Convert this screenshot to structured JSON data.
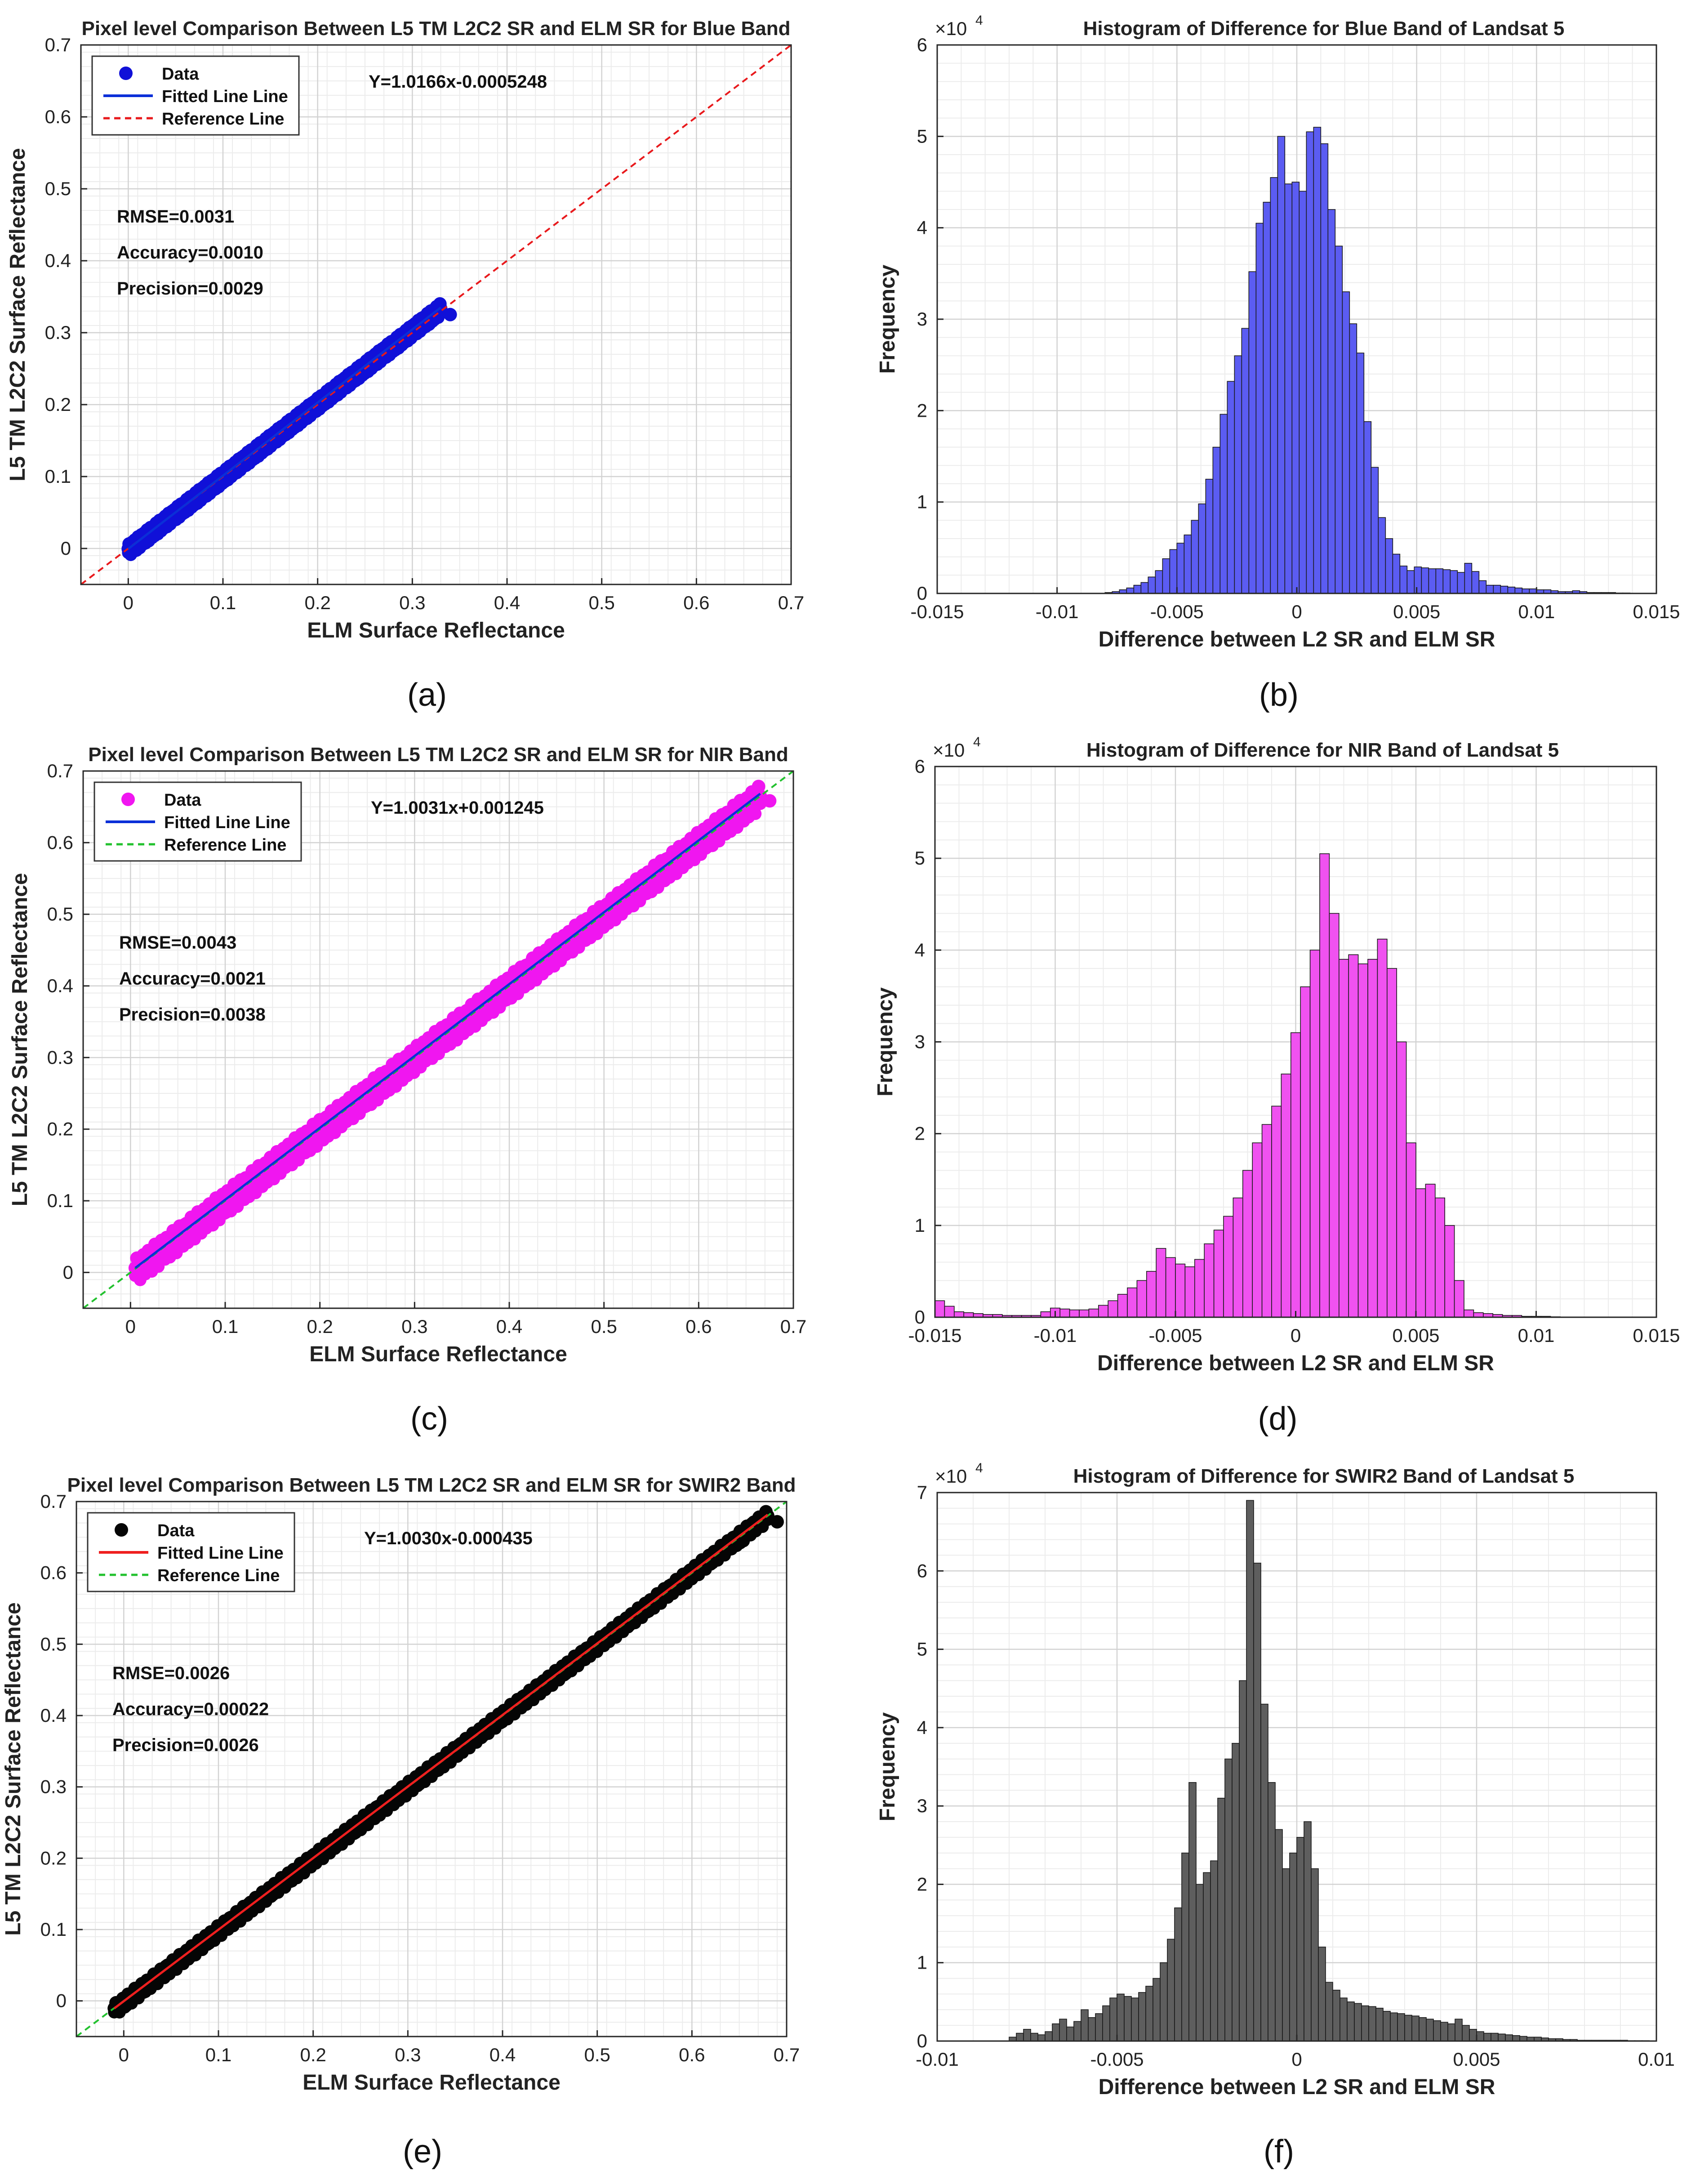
{
  "chart_data": [
    {
      "type": "scatter",
      "panel_label": "(a)",
      "title": "Pixel level Comparison Between L5 TM L2C2 SR and ELM SR for Blue Band",
      "xlabel": "ELM Surface Reflectance",
      "ylabel": "L5 TM L2C2 Surface Reflectance",
      "xlim": [
        -0.05,
        0.7
      ],
      "ylim": [
        -0.05,
        0.7
      ],
      "xticks": [
        "0",
        "0.1",
        "0.2",
        "0.3",
        "0.4",
        "0.5",
        "0.6",
        "0.7"
      ],
      "yticks": [
        "0",
        "0.1",
        "0.2",
        "0.3",
        "0.4",
        "0.5",
        "0.6",
        "0.7"
      ],
      "grid": true,
      "legend_position": "top-left",
      "legend": [
        "Data",
        "Fitted Line Line",
        "Reference Line"
      ],
      "equation": "Y=1.0166x-0.0005248",
      "stats": [
        "RMSE=0.0031",
        "Accuracy=0.0010",
        "Precision=0.0029"
      ],
      "slope": 1.0166,
      "intercept": -0.0005248,
      "data_range": [
        0.0,
        0.33
      ],
      "band_spread": 0.006,
      "colors": {
        "data": "#1010d8",
        "fit": "#0a2fd8",
        "reference": "#e8191c"
      },
      "fit_style": "solid",
      "reference_style": "dashed"
    },
    {
      "type": "bar",
      "panel_label": "(b)",
      "title": "Histogram of Difference for Blue Band of Landsat 5",
      "xlabel": "Difference between L2 SR and ELM SR",
      "ylabel": "Frequency",
      "multiplier": "×10",
      "multiplier_exp": "4",
      "xlim": [
        -0.015,
        0.015
      ],
      "ylim": [
        0,
        6
      ],
      "xticks": [
        "-0.015",
        "-0.01",
        "-0.005",
        "0",
        "0.005",
        "0.01",
        "0.015"
      ],
      "yticks": [
        "0",
        "1",
        "2",
        "3",
        "4",
        "5",
        "6"
      ],
      "grid": true,
      "bin_start": -0.008,
      "bin_width": 0.0003,
      "values": [
        0.01,
        0.02,
        0.04,
        0.06,
        0.09,
        0.12,
        0.18,
        0.25,
        0.38,
        0.48,
        0.55,
        0.64,
        0.8,
        0.98,
        1.25,
        1.6,
        1.96,
        2.32,
        2.6,
        2.9,
        3.52,
        4.05,
        4.28,
        4.55,
        5.0,
        4.48,
        4.5,
        4.4,
        5.05,
        5.1,
        4.92,
        4.2,
        3.8,
        3.3,
        2.95,
        2.63,
        1.88,
        1.38,
        0.83,
        0.6,
        0.43,
        0.3,
        0.25,
        0.29,
        0.28,
        0.27,
        0.27,
        0.26,
        0.25,
        0.23,
        0.33,
        0.24,
        0.14,
        0.09,
        0.09,
        0.08,
        0.07,
        0.06,
        0.05,
        0.05,
        0.04,
        0.04,
        0.03,
        0.02,
        0.02,
        0.03,
        0.02,
        0.01,
        0.01,
        0.01,
        0.01,
        0.005,
        0.005,
        0.003
      ],
      "color": "#5b5cf2"
    },
    {
      "type": "scatter",
      "panel_label": "(c)",
      "title": "Pixel level Comparison Between L5 TM L2C2 SR and ELM SR for NIR Band",
      "xlabel": "ELM Surface Reflectance",
      "ylabel": "L5 TM L2C2 Surface Reflectance",
      "xlim": [
        -0.05,
        0.7
      ],
      "ylim": [
        -0.05,
        0.7
      ],
      "xticks": [
        "0",
        "0.1",
        "0.2",
        "0.3",
        "0.4",
        "0.5",
        "0.6",
        "0.7"
      ],
      "yticks": [
        "0",
        "0.1",
        "0.2",
        "0.3",
        "0.4",
        "0.5",
        "0.6",
        "0.7"
      ],
      "grid": true,
      "legend_position": "top-left",
      "legend": [
        "Data",
        "Fitted Line Line",
        "Reference Line"
      ],
      "equation": "Y=1.0031x+0.001245",
      "stats": [
        "RMSE=0.0043",
        "Accuracy=0.0021",
        "Precision=0.0038"
      ],
      "slope": 1.0031,
      "intercept": 0.001245,
      "data_range": [
        0.005,
        0.665
      ],
      "band_spread": 0.012,
      "colors": {
        "data": "#f016f0",
        "fit": "#0a2fd8",
        "reference": "#22c12e"
      },
      "fit_style": "solid",
      "reference_style": "dashed"
    },
    {
      "type": "bar",
      "panel_label": "(d)",
      "title": "Histogram of Difference for NIR Band of Landsat 5",
      "xlabel": "Difference between L2 SR and ELM SR",
      "ylabel": "Frequency",
      "multiplier": "×10",
      "multiplier_exp": "4",
      "xlim": [
        -0.015,
        0.015
      ],
      "ylim": [
        0,
        6
      ],
      "xticks": [
        "-0.015",
        "-0.01",
        "-0.005",
        "0",
        "0.005",
        "0.01",
        "0.015"
      ],
      "yticks": [
        "0",
        "1",
        "2",
        "3",
        "4",
        "5",
        "6"
      ],
      "grid": true,
      "bin_start": -0.015,
      "bin_width": 0.0004,
      "values": [
        0.18,
        0.12,
        0.06,
        0.05,
        0.04,
        0.03,
        0.03,
        0.02,
        0.02,
        0.02,
        0.02,
        0.06,
        0.1,
        0.09,
        0.08,
        0.08,
        0.09,
        0.13,
        0.18,
        0.25,
        0.32,
        0.4,
        0.5,
        0.75,
        0.65,
        0.58,
        0.55,
        0.63,
        0.8,
        0.95,
        1.1,
        1.3,
        1.6,
        1.9,
        2.1,
        2.3,
        2.65,
        3.1,
        3.6,
        4.0,
        5.05,
        4.4,
        3.9,
        3.95,
        3.85,
        3.9,
        4.12,
        3.8,
        3.0,
        1.9,
        1.4,
        1.45,
        1.3,
        1.0,
        0.4,
        0.08,
        0.05,
        0.04,
        0.03,
        0.02,
        0.02,
        0.01,
        0.01,
        0.01,
        0.005,
        0.003,
        0.002,
        0.002,
        0.001,
        0.001,
        0.001,
        0.001,
        0.001,
        0.001,
        0.001
      ],
      "color": "#f052f0"
    },
    {
      "type": "scatter",
      "panel_label": "(e)",
      "title": "Pixel level Comparison Between L5 TM L2C2 SR and ELM SR for SWIR2 Band",
      "xlabel": "ELM Surface Reflectance",
      "ylabel": "L5 TM L2C2 Surface Reflectance",
      "xlim": [
        -0.05,
        0.7
      ],
      "ylim": [
        -0.05,
        0.7
      ],
      "xticks": [
        "0",
        "0.1",
        "0.2",
        "0.3",
        "0.4",
        "0.5",
        "0.6",
        "0.7"
      ],
      "yticks": [
        "0",
        "0.1",
        "0.2",
        "0.3",
        "0.4",
        "0.5",
        "0.6",
        "0.7"
      ],
      "grid": true,
      "legend_position": "top-left",
      "legend": [
        "Data",
        "Fitted Line Line",
        "Reference Line"
      ],
      "equation": "Y=1.0030x-0.000435",
      "stats": [
        "RMSE=0.0026",
        "Accuracy=0.00022",
        "Precision=0.0026"
      ],
      "slope": 1.003,
      "intercept": -0.000435,
      "data_range": [
        -0.01,
        0.68
      ],
      "band_spread": 0.006,
      "colors": {
        "data": "#050505",
        "fit": "#ef1f1f",
        "reference": "#22c12e"
      },
      "fit_style": "solid",
      "reference_style": "dashed"
    },
    {
      "type": "bar",
      "panel_label": "(f)",
      "title": "Histogram of Difference for SWIR2 Band of Landsat 5",
      "xlabel": "Difference between L2 SR and ELM SR",
      "ylabel": "Frequency",
      "multiplier": "×10",
      "multiplier_exp": "4",
      "xlim": [
        -0.01,
        0.01
      ],
      "ylim": [
        0,
        7
      ],
      "xticks": [
        "-0.01",
        "-0.005",
        "0",
        "0.005",
        "0.01"
      ],
      "yticks": [
        "0",
        "1",
        "2",
        "3",
        "4",
        "5",
        "6",
        "7"
      ],
      "grid": true,
      "bin_start": -0.008,
      "bin_width": 0.0002,
      "values": [
        0.05,
        0.1,
        0.15,
        0.1,
        0.08,
        0.12,
        0.22,
        0.28,
        0.18,
        0.25,
        0.4,
        0.3,
        0.35,
        0.45,
        0.55,
        0.6,
        0.57,
        0.55,
        0.62,
        0.7,
        0.8,
        1.0,
        1.3,
        1.7,
        2.4,
        3.3,
        2.0,
        2.15,
        2.3,
        3.1,
        3.6,
        3.8,
        4.6,
        6.9,
        6.1,
        4.3,
        3.3,
        2.7,
        2.2,
        2.4,
        2.6,
        2.8,
        2.2,
        1.2,
        0.75,
        0.65,
        0.55,
        0.5,
        0.48,
        0.45,
        0.44,
        0.42,
        0.38,
        0.36,
        0.35,
        0.33,
        0.32,
        0.3,
        0.28,
        0.26,
        0.24,
        0.22,
        0.28,
        0.2,
        0.15,
        0.12,
        0.1,
        0.1,
        0.09,
        0.08,
        0.07,
        0.06,
        0.05,
        0.05,
        0.04,
        0.03,
        0.03,
        0.02,
        0.02,
        0.01,
        0.01,
        0.01,
        0.01,
        0.01,
        0.01,
        0.01,
        0.005,
        0.005,
        0.005,
        0.003
      ],
      "color": "#5e5e5e"
    }
  ]
}
